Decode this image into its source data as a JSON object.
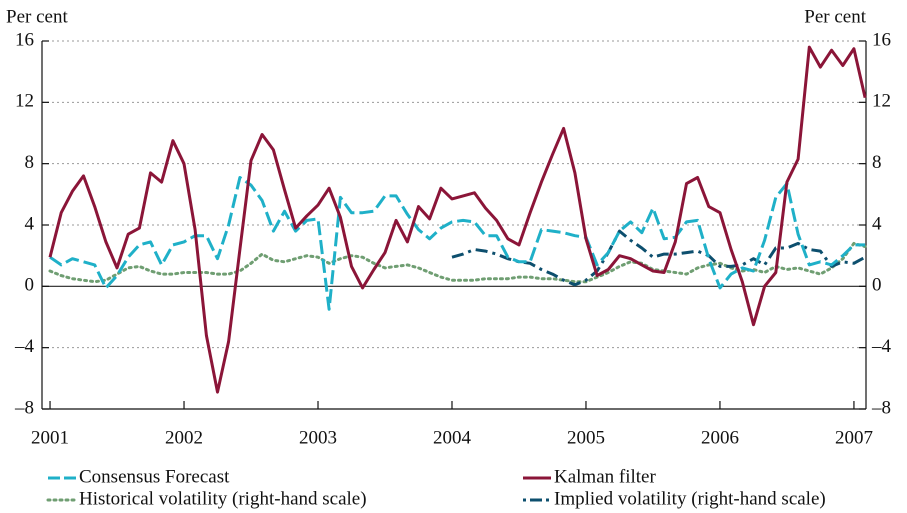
{
  "chart_data": {
    "type": "line",
    "y_label": "Per cent",
    "y2_label": "Per cent",
    "x": [
      2001,
      2001.083,
      2001.167,
      2001.25,
      2001.333,
      2001.417,
      2001.5,
      2001.583,
      2001.667,
      2001.75,
      2001.833,
      2001.917,
      2002,
      2002.083,
      2002.167,
      2002.25,
      2002.333,
      2002.417,
      2002.5,
      2002.583,
      2002.667,
      2002.75,
      2002.833,
      2002.917,
      2003,
      2003.083,
      2003.167,
      2003.25,
      2003.333,
      2003.417,
      2003.5,
      2003.583,
      2003.667,
      2003.75,
      2003.833,
      2003.917,
      2004,
      2004.083,
      2004.167,
      2004.25,
      2004.333,
      2004.417,
      2004.5,
      2004.583,
      2004.667,
      2004.75,
      2004.833,
      2004.917,
      2005,
      2005.083,
      2005.167,
      2005.25,
      2005.333,
      2005.417,
      2005.5,
      2005.583,
      2005.667,
      2005.75,
      2005.833,
      2005.917,
      2006,
      2006.083,
      2006.167,
      2006.25,
      2006.333,
      2006.417,
      2006.5,
      2006.583,
      2006.667,
      2006.75,
      2006.833,
      2006.917,
      2007,
      2007.083
    ],
    "series": [
      {
        "name": "Consensus Forecast",
        "color": "#1fb0c8",
        "style": "dashed",
        "values": [
          1.9,
          1.4,
          1.8,
          1.6,
          1.4,
          -0.1,
          0.7,
          1.9,
          2.7,
          2.9,
          1.4,
          2.7,
          2.9,
          3.3,
          3.3,
          1.8,
          4.0,
          7.1,
          6.6,
          5.6,
          3.6,
          4.9,
          3.6,
          4.3,
          4.4,
          -1.5,
          5.8,
          4.8,
          4.8,
          4.9,
          5.9,
          5.9,
          4.7,
          3.7,
          3.1,
          3.8,
          4.2,
          4.3,
          4.2,
          3.3,
          3.3,
          1.9,
          1.6,
          1.6,
          3.7,
          3.6,
          3.5,
          3.3,
          3.2,
          1.4,
          2.2,
          3.6,
          4.2,
          3.5,
          5.1,
          3.1,
          3.2,
          4.2,
          4.3,
          1.8,
          -0.1,
          0.8,
          1.2,
          1.0,
          3.0,
          5.8,
          6.7,
          3.4,
          1.4,
          1.6,
          1.4,
          2.0,
          2.7,
          2.7
        ]
      },
      {
        "name": "Kalman filter",
        "color": "#8b1538",
        "style": "solid",
        "values": [
          1.9,
          4.8,
          6.2,
          7.2,
          5.2,
          2.9,
          1.2,
          3.4,
          3.8,
          7.4,
          6.8,
          9.5,
          8.0,
          3.7,
          -3.2,
          -6.9,
          -3.6,
          2.4,
          8.2,
          9.9,
          8.9,
          6.3,
          3.8,
          4.6,
          5.3,
          6.4,
          4.5,
          1.3,
          -0.1,
          1.1,
          2.2,
          4.3,
          2.9,
          5.2,
          4.4,
          6.4,
          5.7,
          5.9,
          6.1,
          5.1,
          4.3,
          3.1,
          2.7,
          4.8,
          6.8,
          8.6,
          10.3,
          7.4,
          3.1,
          0.7,
          1.1,
          2.0,
          1.8,
          1.4,
          1.0,
          0.9,
          2.9,
          6.7,
          7.1,
          5.2,
          4.8,
          2.4,
          0.3,
          -2.5,
          0,
          0.9,
          6.8,
          8.3,
          15.6,
          14.3,
          15.4,
          14.4,
          15.5,
          12.3
        ]
      },
      {
        "name": "Historical volatility (right-hand scale)",
        "color": "#6f9e72",
        "style": "dotted",
        "axis": "y2",
        "values": [
          1.0,
          0.7,
          0.5,
          0.4,
          0.3,
          0.4,
          0.8,
          1.2,
          1.3,
          1.0,
          0.8,
          0.8,
          0.9,
          0.9,
          0.9,
          0.8,
          0.8,
          1.0,
          1.5,
          2.1,
          1.7,
          1.6,
          1.8,
          2.0,
          1.9,
          1.5,
          1.8,
          2.0,
          1.9,
          1.5,
          1.2,
          1.3,
          1.4,
          1.2,
          0.9,
          0.6,
          0.4,
          0.4,
          0.4,
          0.5,
          0.5,
          0.5,
          0.6,
          0.6,
          0.5,
          0.5,
          0.4,
          0.3,
          0.3,
          0.6,
          0.9,
          1.3,
          1.6,
          1.5,
          1.1,
          1.0,
          0.9,
          0.8,
          1.2,
          1.4,
          1.5,
          1.2,
          1.0,
          1.1,
          0.9,
          1.3,
          1.1,
          1.2,
          1.0,
          0.8,
          1.2,
          1.8,
          2.8,
          2.6
        ]
      },
      {
        "name": "Implied volatility (right-hand scale)",
        "color": "#0d4f6e",
        "style": "dashdot",
        "axis": "y2",
        "values": [
          null,
          null,
          null,
          null,
          null,
          null,
          null,
          null,
          null,
          null,
          null,
          null,
          null,
          null,
          null,
          null,
          null,
          null,
          null,
          null,
          null,
          null,
          null,
          null,
          null,
          null,
          null,
          null,
          null,
          null,
          null,
          null,
          null,
          null,
          null,
          null,
          1.9,
          2.1,
          2.4,
          2.3,
          2.1,
          1.8,
          1.6,
          1.5,
          1.1,
          0.8,
          0.4,
          0.1,
          0.4,
          1.0,
          2.2,
          3.6,
          3.0,
          2.5,
          1.9,
          2.1,
          2.1,
          2.2,
          2.3,
          2.0,
          1.3,
          1.3,
          1.4,
          1.8,
          1.4,
          2.5,
          2.5,
          2.8,
          2.4,
          2.3,
          1.3,
          1.6,
          1.5,
          1.9
        ]
      }
    ],
    "xlim": [
      2000.94,
      2007.09
    ],
    "xticks": [
      2001,
      2002,
      2003,
      2004,
      2005,
      2006,
      2007
    ],
    "ylim": [
      -8,
      16
    ],
    "yticks": [
      {
        "value": -8,
        "label": "–8"
      },
      {
        "value": -4,
        "label": "–4"
      },
      0,
      4,
      8,
      12,
      16
    ],
    "y2lim": [
      -8,
      16
    ],
    "y2ticks": [
      {
        "value": -8,
        "label": "–8"
      },
      {
        "value": -4,
        "label": "–4"
      },
      0,
      4,
      8,
      12,
      16
    ],
    "grid": true
  }
}
